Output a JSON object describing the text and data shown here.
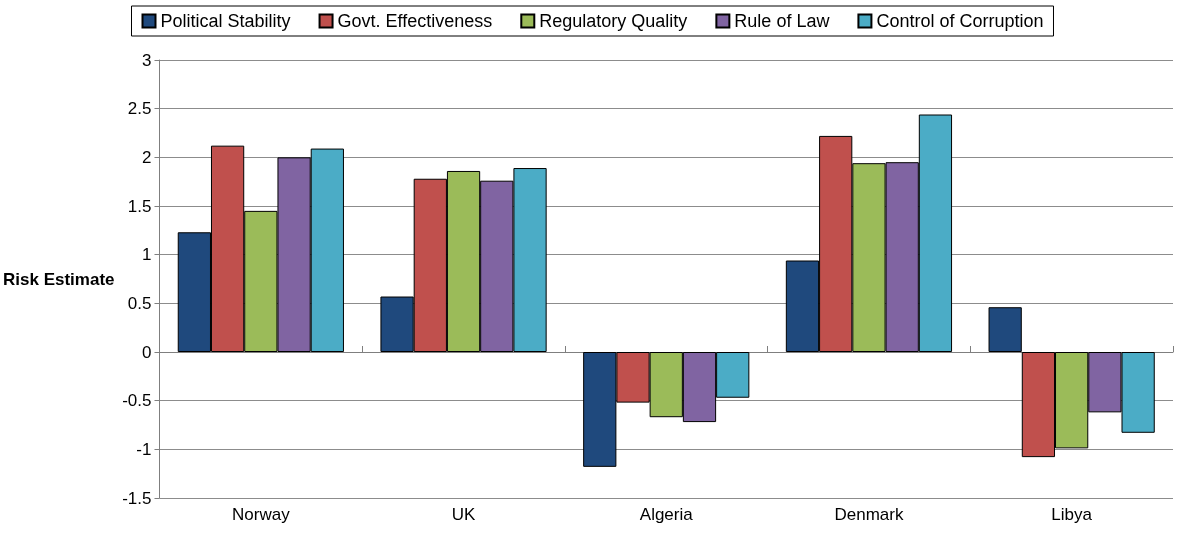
{
  "chart_data": {
    "type": "bar",
    "ylabel": "Risk Estimate",
    "categories": [
      "Norway",
      "UK",
      "Algeria",
      "Denmark",
      "Libya"
    ],
    "series": [
      {
        "name": "Political Stability",
        "color": "#1f497d",
        "values": [
          1.23,
          0.57,
          -1.18,
          0.94,
          0.46
        ]
      },
      {
        "name": "Govt. Effectiveness",
        "color": "#c0504d",
        "values": [
          2.12,
          1.78,
          -0.52,
          2.22,
          -1.08
        ]
      },
      {
        "name": "Regulatory Quality",
        "color": "#9bbb59",
        "values": [
          1.45,
          1.86,
          -0.67,
          1.94,
          -0.99
        ]
      },
      {
        "name": "Rule of Law",
        "color": "#8064a2",
        "values": [
          2.0,
          1.76,
          -0.72,
          1.95,
          -0.62
        ]
      },
      {
        "name": "Control of Corruption",
        "color": "#4bacc6",
        "values": [
          2.09,
          1.89,
          -0.47,
          2.44,
          -0.83
        ]
      }
    ],
    "ylim": [
      -1.5,
      3
    ],
    "yticks": [
      -1.5,
      -1,
      -0.5,
      0,
      0.5,
      1,
      1.5,
      2,
      2.5,
      3
    ],
    "grid": "y",
    "legend": "top"
  }
}
